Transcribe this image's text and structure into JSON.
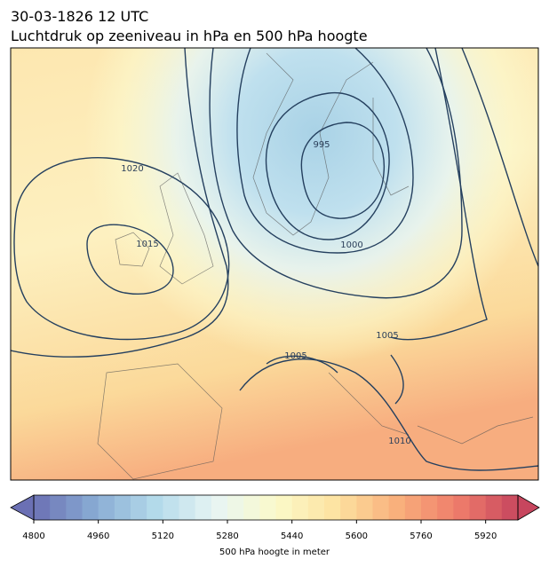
{
  "header": {
    "title": "30-03-1826 12 UTC",
    "subtitle": "Luchtdruk op zeeniveau in hPa en 500 hPa hoogte"
  },
  "map": {
    "contour_labels": [
      "995",
      "1000",
      "1005",
      "1005",
      "1010",
      "1015",
      "1020"
    ]
  },
  "colorbar": {
    "label": "500 hPa hoogte in meter",
    "lim": [
      4800,
      6000
    ],
    "step": 40,
    "ticks": [
      4800,
      4960,
      5120,
      5280,
      5440,
      5600,
      5760,
      5920
    ],
    "colors": [
      "#6b70b4",
      "#88abd3",
      "#b3daea",
      "#e8f5f4",
      "#fbfaca",
      "#fde2a0",
      "#f9b07c",
      "#ef7d6b",
      "#c7465e"
    ]
  }
}
